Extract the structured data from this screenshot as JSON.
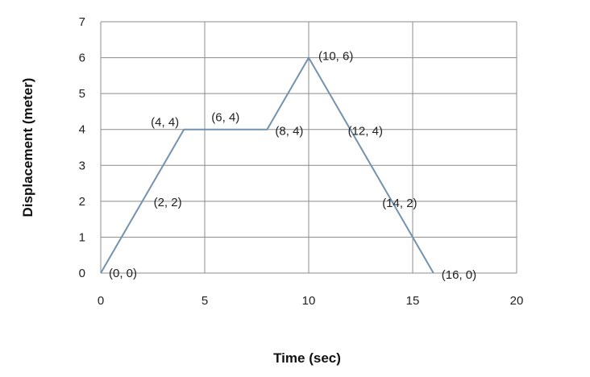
{
  "chart_data": {
    "type": "line",
    "xlabel": "Time (sec)",
    "ylabel": "Displacement (meter)",
    "xlim": [
      0,
      20
    ],
    "ylim": [
      0,
      7
    ],
    "x_ticks": [
      0,
      5,
      10,
      15,
      20
    ],
    "y_ticks": [
      0,
      1,
      2,
      3,
      4,
      5,
      6,
      7
    ],
    "grid": true,
    "series": [
      {
        "color": "#7392ae",
        "points": [
          [
            0,
            0
          ],
          [
            4,
            4
          ],
          [
            8,
            4
          ],
          [
            10,
            6
          ],
          [
            16,
            0
          ]
        ]
      }
    ],
    "annotations": [
      {
        "text": "(0, 0)",
        "x": 0,
        "y": 0
      },
      {
        "text": "(2, 2)",
        "x": 2,
        "y": 2
      },
      {
        "text": "(4, 4)",
        "x": 4,
        "y": 4
      },
      {
        "text": "(6, 4)",
        "x": 6,
        "y": 4
      },
      {
        "text": "(8, 4)",
        "x": 8,
        "y": 4
      },
      {
        "text": "(10, 6)",
        "x": 10,
        "y": 6
      },
      {
        "text": "(12, 4)",
        "x": 12,
        "y": 4
      },
      {
        "text": "(14, 2)",
        "x": 14,
        "y": 2
      },
      {
        "text": "(16, 0)",
        "x": 16,
        "y": 0
      }
    ]
  }
}
